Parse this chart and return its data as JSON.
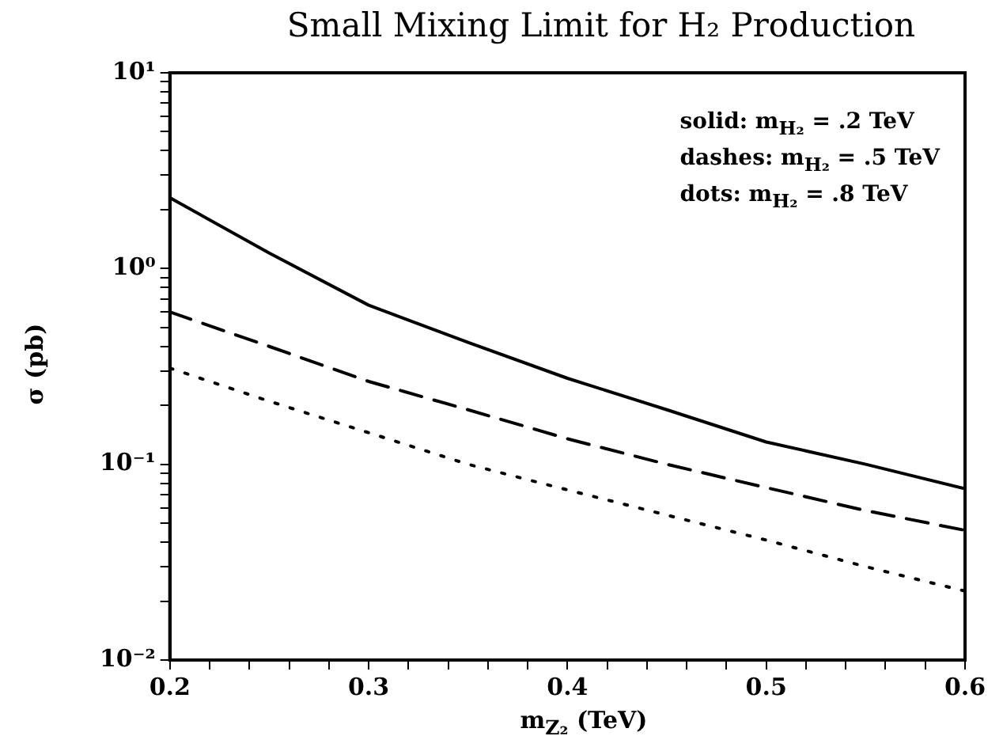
{
  "chart_data": {
    "type": "line",
    "title": "Small Mixing Limit for H₂ Production",
    "xlabel": "m$_{Z₂}$ (TeV)",
    "ylabel": "σ (pb)",
    "annotations": [
      "solid: m$_{H₂}$ = .2 TeV",
      "dashes: m$_{H₂}$ = .5 TeV",
      "dots: m$_{H₂}$ = .8 TeV"
    ],
    "x": [
      0.2,
      0.25,
      0.3,
      0.35,
      0.4,
      0.45,
      0.5,
      0.55,
      0.6
    ],
    "series": [
      {
        "color": "#000000",
        "line_style": "solid",
        "values": [
          2.3,
          1.2,
          0.65,
          0.42,
          0.275,
          0.19,
          0.13,
          0.1,
          0.075
        ]
      },
      {
        "color": "#000000",
        "line_style": "dashed",
        "values": [
          0.6,
          0.4,
          0.265,
          0.19,
          0.135,
          0.1,
          0.076,
          0.058,
          0.046
        ]
      },
      {
        "color": "#000000",
        "line_style": "dotted",
        "values": [
          0.31,
          0.21,
          0.145,
          0.1,
          0.074,
          0.055,
          0.041,
          0.03,
          0.0225
        ]
      }
    ],
    "log": "y",
    "xlim": [
      0.2,
      0.6
    ],
    "ylim": [
      0.01,
      10
    ],
    "xticks": [
      0.2,
      {
        "value": 0.22,
        "label": null
      },
      {
        "value": 0.24,
        "label": null
      },
      {
        "value": 0.26,
        "label": null
      },
      {
        "value": 0.28,
        "label": null
      },
      0.3,
      {
        "value": 0.32,
        "label": null
      },
      {
        "value": 0.34,
        "label": null
      },
      {
        "value": 0.36,
        "label": null
      },
      {
        "value": 0.38,
        "label": null
      },
      0.4,
      {
        "value": 0.42,
        "label": null
      },
      {
        "value": 0.44,
        "label": null
      },
      {
        "value": 0.46,
        "label": null
      },
      {
        "value": 0.48,
        "label": null
      },
      0.5,
      {
        "value": 0.52,
        "label": null
      },
      {
        "value": 0.54,
        "label": null
      },
      {
        "value": 0.56,
        "label": null
      },
      {
        "value": 0.58,
        "label": null
      },
      0.6
    ],
    "yticks": [
      {
        "value": 0.01,
        "label": "10⁻²"
      },
      {
        "value": 0.02,
        "label": null
      },
      {
        "value": 0.03,
        "label": null
      },
      {
        "value": 0.04,
        "label": null
      },
      {
        "value": 0.05,
        "label": null
      },
      {
        "value": 0.06,
        "label": null
      },
      {
        "value": 0.07,
        "label": null
      },
      {
        "value": 0.08,
        "label": null
      },
      {
        "value": 0.09,
        "label": null
      },
      {
        "value": 0.1,
        "label": "10⁻¹"
      },
      {
        "value": 0.2,
        "label": null
      },
      {
        "value": 0.3,
        "label": null
      },
      {
        "value": 0.4,
        "label": null
      },
      {
        "value": 0.5,
        "label": null
      },
      {
        "value": 0.6,
        "label": null
      },
      {
        "value": 0.7,
        "label": null
      },
      {
        "value": 0.8,
        "label": null
      },
      {
        "value": 0.9,
        "label": null
      },
      {
        "value": 1,
        "label": "10⁰"
      },
      {
        "value": 2,
        "label": null
      },
      {
        "value": 3,
        "label": null
      },
      {
        "value": 4,
        "label": null
      },
      {
        "value": 5,
        "label": null
      },
      {
        "value": 6,
        "label": null
      },
      {
        "value": 7,
        "label": null
      },
      {
        "value": 8,
        "label": null
      },
      {
        "value": 9,
        "label": null
      },
      {
        "value": 10,
        "label": "10¹"
      }
    ],
    "grid": false,
    "legend": false,
    "marker": "none"
  }
}
